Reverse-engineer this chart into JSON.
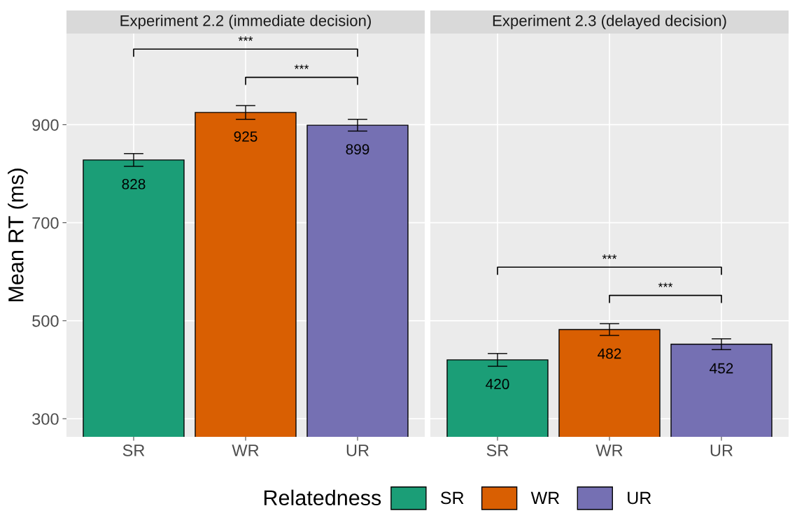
{
  "chart_data": [
    {
      "type": "bar",
      "title": "Experiment 2.2 (immediate decision)",
      "ylabel": "Mean RT (ms)",
      "categories": [
        "SR",
        "WR",
        "UR"
      ],
      "series": [
        {
          "name": "SR",
          "color": "#1b9e77",
          "values": [
            828,
            null,
            null
          ],
          "errors": [
            13,
            null,
            null
          ]
        },
        {
          "name": "WR",
          "color": "#d95f02",
          "values": [
            null,
            925,
            null
          ],
          "errors": [
            null,
            14,
            null
          ]
        },
        {
          "name": "UR",
          "color": "#7570b3",
          "values": [
            null,
            null,
            899
          ],
          "errors": [
            null,
            null,
            12
          ]
        }
      ],
      "data_labels": true,
      "ylim": [
        263,
        1086
      ],
      "yticks": [
        300,
        500,
        700,
        900
      ],
      "grid": true,
      "legend": "bottom",
      "legend_title": "Relatedness",
      "annotations": [
        "***",
        "***"
      ]
    },
    {
      "type": "bar",
      "title": "Experiment 2.3 (delayed decision)",
      "categories": [
        "SR",
        "WR",
        "UR"
      ],
      "series": [
        {
          "color": "#1b9e77",
          "values": [
            420,
            null,
            null
          ],
          "errors": [
            13,
            null,
            null
          ]
        },
        {
          "color": "#d95f02",
          "values": [
            null,
            482,
            null
          ],
          "errors": [
            null,
            12,
            null
          ]
        },
        {
          "color": "#7570b3",
          "values": [
            null,
            null,
            452
          ],
          "errors": [
            null,
            null,
            11
          ]
        }
      ],
      "data_labels": true,
      "ylim": [
        263,
        1086
      ],
      "yticks": [
        300,
        500,
        700,
        900
      ],
      "grid": true,
      "tick_labels": "x",
      "annotations": [
        "***",
        "***"
      ]
    }
  ]
}
